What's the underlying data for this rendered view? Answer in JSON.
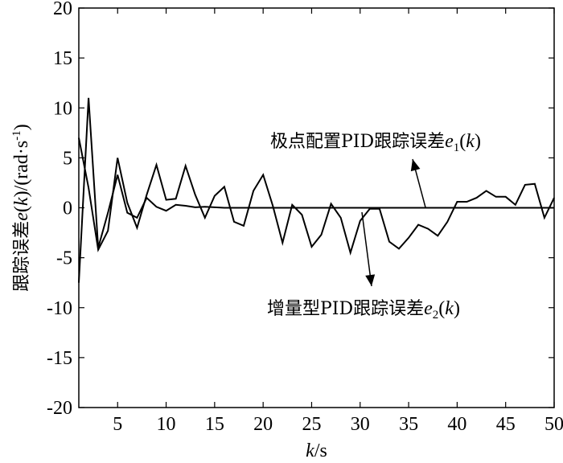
{
  "chart_data": {
    "type": "line",
    "xlabel_var": "k",
    "xlabel_unit": "/s",
    "ylabel_text": "跟踪误差",
    "ylabel_var": "e",
    "ylabel_arg": "(k)",
    "ylabel_unit": "/(rad·s",
    "ylabel_exp": "-1",
    "ylabel_close": ")",
    "xlim": [
      1,
      50
    ],
    "ylim": [
      -20,
      20
    ],
    "xticks": [
      5,
      10,
      15,
      20,
      25,
      30,
      35,
      40,
      45,
      50
    ],
    "yticks": [
      -20,
      -15,
      -10,
      -5,
      0,
      5,
      10,
      15,
      20
    ],
    "grid": false,
    "series": [
      {
        "name": "极点配置PID跟踪误差e1(k)",
        "x": [
          1,
          2,
          3,
          4,
          5,
          6,
          7,
          8,
          9,
          10,
          11,
          12,
          13,
          14,
          15,
          16,
          17,
          18,
          19,
          20,
          21,
          22,
          23,
          24,
          25,
          26,
          27,
          28,
          29,
          30,
          31,
          32,
          33,
          34,
          35,
          36,
          37,
          38,
          39,
          40,
          41,
          42,
          43,
          44,
          45,
          46,
          47,
          48,
          49,
          50
        ],
        "y": [
          -7.5,
          11,
          -4,
          -0.5,
          3.3,
          -0.5,
          -1,
          1,
          0.1,
          -0.3,
          0.3,
          0.2,
          0.05,
          0.1,
          0.05,
          0,
          0,
          0,
          0,
          0,
          0,
          0,
          0,
          0,
          0,
          0,
          0,
          0,
          0,
          0,
          0,
          0,
          0,
          0,
          0,
          0,
          0,
          0,
          0,
          0,
          0,
          0,
          0,
          0,
          0,
          0,
          0,
          0,
          0,
          0
        ]
      },
      {
        "name": "增量型PID跟踪误差e2(k)",
        "x": [
          1,
          2,
          3,
          4,
          5,
          6,
          7,
          8,
          9,
          10,
          11,
          12,
          13,
          14,
          15,
          16,
          17,
          18,
          19,
          20,
          21,
          22,
          23,
          24,
          25,
          26,
          27,
          28,
          29,
          30,
          31,
          32,
          33,
          34,
          35,
          36,
          37,
          38,
          39,
          40,
          41,
          42,
          43,
          44,
          45,
          46,
          47,
          48,
          49,
          50
        ],
        "y": [
          7,
          2,
          -4.2,
          -2.3,
          5,
          0.5,
          -2,
          1.3,
          4.3,
          0.8,
          0.9,
          4.2,
          1.3,
          -1,
          1.2,
          2.1,
          -1.4,
          -1.8,
          1.7,
          3.3,
          0.2,
          -3.5,
          0.3,
          -0.7,
          -3.9,
          -2.7,
          0.4,
          -1,
          -4.5,
          -1.3,
          -0.1,
          -0.1,
          -3.4,
          -4.1,
          -3,
          -1.7,
          -2.1,
          -2.8,
          -1.4,
          0.6,
          0.6,
          1,
          1.7,
          1.1,
          1.1,
          0.3,
          2.3,
          2.4,
          -1,
          1
        ]
      }
    ],
    "annotations": [
      {
        "label": "极点配置PID跟踪误差",
        "var": "e",
        "sub": "1",
        "arg": "(k)",
        "point_x": 37.5,
        "point_y": 0
      },
      {
        "label": "增量型PID跟踪误差",
        "var": "e",
        "sub": "2",
        "arg": "(k)",
        "point_x": 31,
        "point_y": -0.5
      }
    ]
  }
}
